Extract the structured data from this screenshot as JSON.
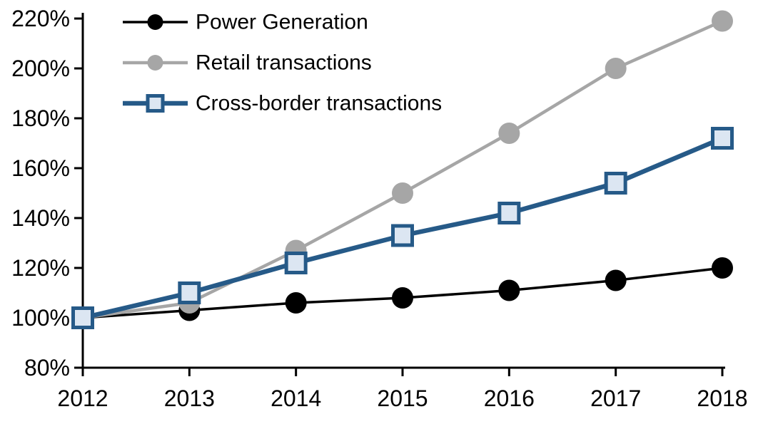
{
  "chart_data": {
    "type": "line",
    "x": [
      2012,
      2013,
      2014,
      2015,
      2016,
      2017,
      2018
    ],
    "xtick_labels": [
      "2012",
      "2013",
      "2014",
      "2015",
      "2016",
      "2017",
      "2018"
    ],
    "series": [
      {
        "name": "Power Generation",
        "values": [
          100,
          103,
          106,
          108,
          111,
          115,
          120
        ],
        "color": "#000000",
        "marker": "circle",
        "marker_fill": "#000000",
        "line_width": 3.5
      },
      {
        "name": "Retail transactions",
        "values": [
          100,
          106,
          127,
          150,
          174,
          200,
          219
        ],
        "color": "#a6a6a6",
        "marker": "circle",
        "marker_fill": "#a6a6a6",
        "line_width": 4.5
      },
      {
        "name": "Cross-border transactions",
        "values": [
          100,
          110,
          122,
          133,
          142,
          154,
          172
        ],
        "color": "#265a88",
        "marker": "square",
        "marker_fill": "#dce6f2",
        "line_width": 6.5
      }
    ],
    "ylim": [
      80,
      220
    ],
    "ytick_step": 20,
    "ytick_labels": [
      "80%",
      "100%",
      "120%",
      "140%",
      "160%",
      "180%",
      "200%",
      "220%"
    ],
    "unit": "%",
    "grid": false,
    "background": "#ffffff",
    "axis_color": "#000000",
    "legend_position": "top-left",
    "legend": [
      "Power Generation",
      "Retail transactions",
      "Cross-border transactions"
    ]
  }
}
